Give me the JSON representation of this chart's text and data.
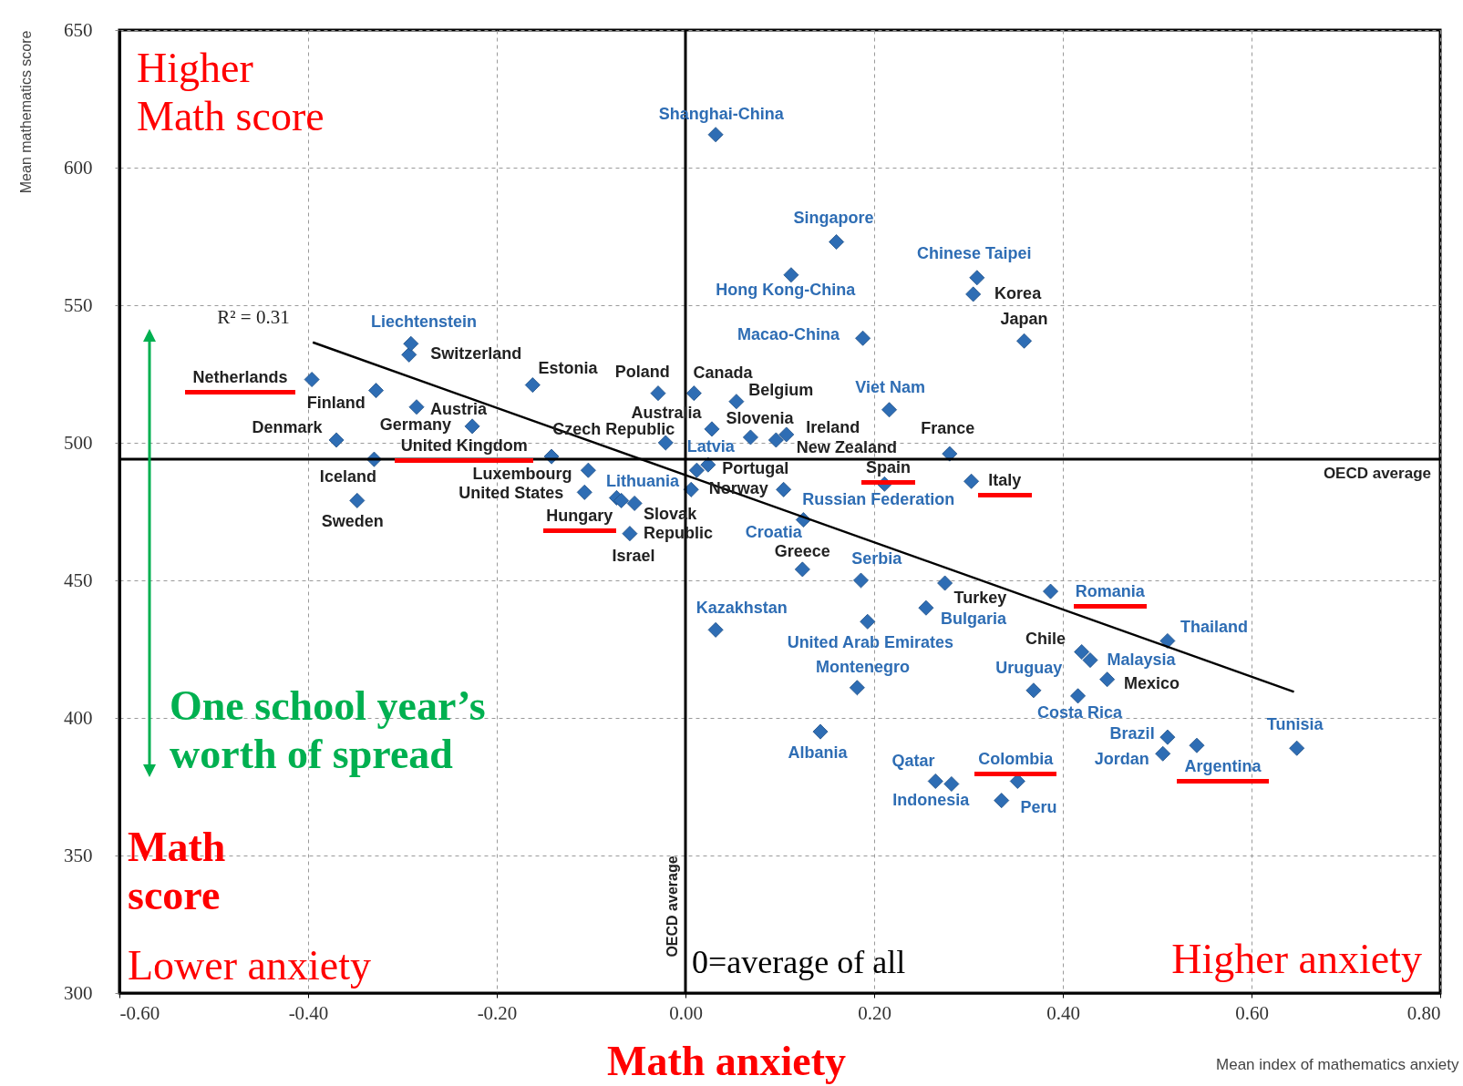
{
  "chart_data": {
    "type": "scatter",
    "xlabel": "Mean index of mathematics anxiety",
    "ylabel": "Mean mathematics score",
    "xlim": [
      -0.6,
      0.8
    ],
    "ylim": [
      300,
      650
    ],
    "xticks": [
      {
        "value": -0.6,
        "label": "-0.60"
      },
      {
        "value": -0.4,
        "label": "-0.40"
      },
      {
        "value": -0.2,
        "label": "-0.20"
      },
      {
        "value": 0,
        "label": "0.00"
      },
      {
        "value": 0.2,
        "label": "0.20"
      },
      {
        "value": 0.4,
        "label": "0.40"
      },
      {
        "value": 0.6,
        "label": "0.60"
      },
      {
        "value": 0.8,
        "label": "0.80"
      }
    ],
    "yticks": [
      300,
      350,
      400,
      450,
      500,
      550,
      600,
      650
    ],
    "grid": true,
    "marker": "diamond",
    "series": [
      {
        "color": "#2e6db4",
        "x": [
          0.305,
          0.359,
          -0.293,
          -0.396,
          -0.328,
          -0.162,
          -0.029,
          0.009,
          0.054,
          -0.285,
          0.028,
          -0.226,
          0.069,
          0.107,
          0.096,
          -0.37,
          0.28,
          -0.021,
          -0.142,
          -0.33,
          -0.103,
          0.024,
          0.006,
          0.211,
          0.303,
          -0.107,
          -0.054,
          -0.348,
          -0.073,
          -0.059,
          0.124,
          0.275,
          0.42,
          0.447
        ],
        "values": [
          554,
          537,
          532,
          523,
          519,
          521,
          518,
          518,
          515,
          513,
          505,
          506,
          502,
          503,
          501,
          501,
          496,
          500,
          495,
          494,
          490,
          492,
          483,
          485,
          486,
          482,
          478,
          479,
          480,
          467,
          454,
          449,
          424,
          414
        ],
        "value_labels": [
          "Korea",
          "Japan",
          "Switzerland",
          "Netherlands",
          "Finland",
          "Estonia",
          "Poland",
          "Canada",
          "Belgium",
          "Austria",
          "Australia",
          "Germany",
          "Slovenia",
          "Ireland",
          "New Zealand",
          "Denmark",
          "France",
          "Czech Republic",
          "United Kingdom",
          "Iceland",
          "Luxembourg",
          "Portugal",
          "Norway",
          "Spain",
          "Italy",
          "United States",
          "Slovak Republic",
          "Sweden",
          "Hungary",
          "Israel",
          "Greece",
          "Turkey",
          "Chile",
          "Mexico"
        ]
      },
      {
        "color": "#2e6db4",
        "x": [
          0.032,
          0.16,
          0.309,
          0.112,
          0.188,
          -0.291,
          0.216,
          0.012,
          -0.068,
          0.104,
          0.125,
          0.186,
          0.387,
          0.255,
          0.193,
          0.032,
          0.511,
          0.429,
          0.182,
          0.369,
          0.416,
          0.143,
          0.511,
          0.506,
          0.542,
          0.648,
          0.352,
          0.282,
          0.265,
          0.335
        ],
        "values": [
          612,
          573,
          560,
          561,
          538,
          536,
          512,
          490,
          479,
          483,
          472,
          450,
          446,
          440,
          435,
          432,
          428,
          421,
          411,
          410,
          408,
          395,
          393,
          387,
          390,
          389,
          377,
          376,
          377,
          370
        ],
        "value_labels": [
          "Shanghai-China",
          "Singapore",
          "Chinese Taipei",
          "Hong Kong-China",
          "Macao-China",
          "Liechtenstein",
          "Viet Nam",
          "Latvia",
          "Lithuania",
          "Russian Federation",
          "Croatia",
          "Serbia",
          "Romania",
          "Bulgaria",
          "United Arab Emirates",
          "Kazakhstan",
          "Thailand",
          "Malaysia",
          "Montenegro",
          "Uruguay",
          "Costa Rica",
          "Albania",
          "Brazil",
          "Jordan",
          "Argentina",
          "Tunisia",
          "Colombia",
          "Qatar",
          "Indonesia",
          "Peru"
        ]
      },
      {
        "type": "line",
        "marker": "none",
        "color": "#000000",
        "x": [
          -0.395,
          0.645
        ],
        "values": [
          536.5,
          409.5
        ]
      }
    ],
    "ref_lines": [
      {
        "axis": "y",
        "value": 494,
        "label": "OECD average"
      },
      {
        "axis": "x",
        "value": 0,
        "label": "OECD average"
      }
    ],
    "annotations": [
      "R² = 0.31",
      "Higher\nMath score",
      "Math\nscore",
      "Lower anxiety",
      "0=average of all",
      "Higher anxiety",
      "One school year’s\nworth of spread",
      "Math anxiety"
    ]
  }
}
